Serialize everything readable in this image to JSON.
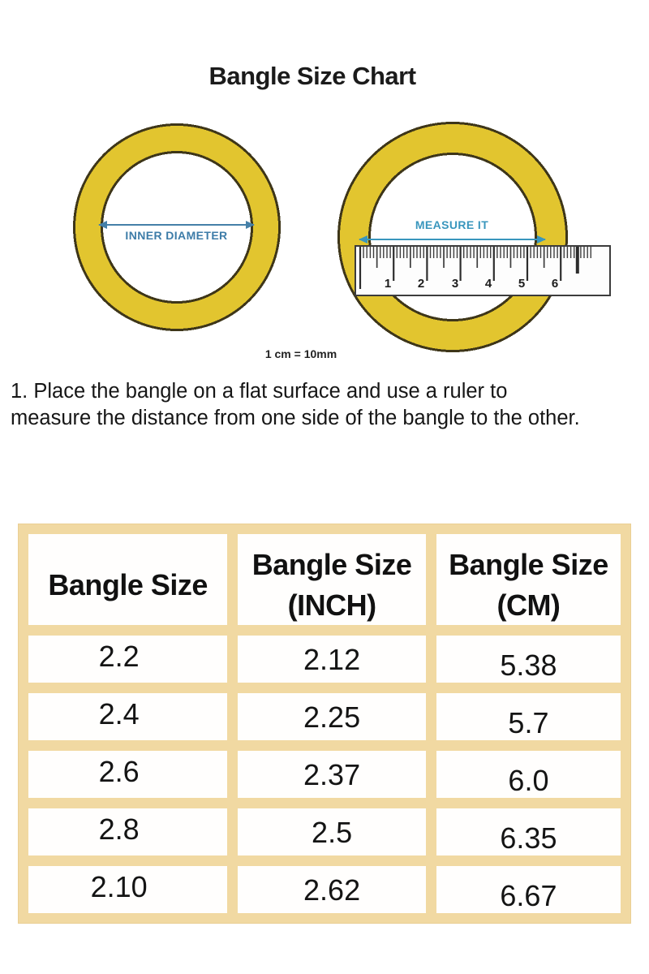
{
  "page": {
    "title": "Bangle Size Chart"
  },
  "diagram": {
    "inner_diameter_label": "INNER DIAMETER",
    "measure_it_label": "MEASURE IT",
    "ruler_numbers": [
      "1",
      "2",
      "3",
      "4",
      "5",
      "6"
    ],
    "scale_note": "1 cm = 10mm"
  },
  "instructions": "1. Place the bangle on a flat surface and use a ruler to\nmeasure the distance from one side of the bangle to the other.",
  "table": {
    "headers": [
      {
        "line1": "Bangle Size",
        "line2": ""
      },
      {
        "line1": "Bangle Size",
        "line2": "(INCH)"
      },
      {
        "line1": "Bangle Size",
        "line2": "(CM)"
      }
    ],
    "rows": [
      [
        "2.2",
        "2.12",
        "5.38"
      ],
      [
        "2.4",
        "2.25",
        "5.7"
      ],
      [
        "2.6",
        "2.37",
        "6.0"
      ],
      [
        "2.8",
        "2.5",
        "6.35"
      ],
      [
        "2.10",
        "2.62",
        "6.67"
      ]
    ]
  },
  "colors": {
    "bangle_gold": "#e2c52f",
    "bangle_outline": "#3e3619",
    "table_border_tan": "#f1d9a2",
    "inner_diameter_blue": "#3d7ca8",
    "measure_it_blue": "#3996bd",
    "text_black": "#151515"
  }
}
